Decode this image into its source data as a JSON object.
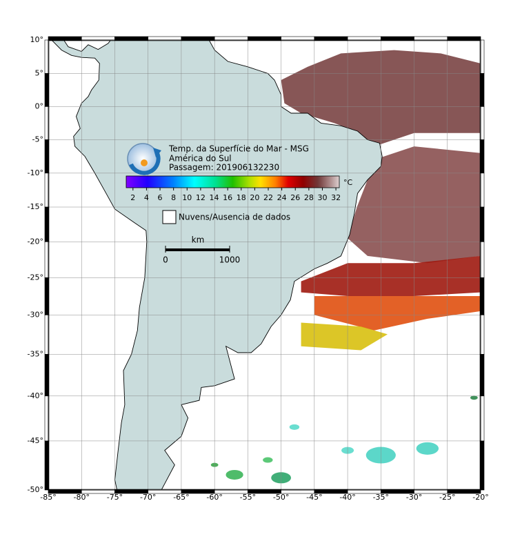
{
  "header": {
    "title": "Temp. da Superfície do Mar - MSG",
    "region": "América do Sul",
    "pass": "Passagem: 201906132230"
  },
  "colorbar": {
    "lim": [
      1,
      32.5
    ],
    "ticks": [
      2,
      4,
      6,
      8,
      10,
      12,
      14,
      16,
      18,
      20,
      22,
      24,
      26,
      28,
      30,
      32
    ],
    "unit": "°C"
  },
  "legend": {
    "no_data": "Nuvens/Ausencia de dados"
  },
  "scale_bar": {
    "unit": "km",
    "ticks": [
      0,
      1000
    ]
  },
  "map": {
    "xlim": [
      -85,
      -20
    ],
    "ylim": [
      -50,
      10
    ],
    "xticks": [
      {
        "value": -85,
        "label": "-85°"
      },
      {
        "value": -80,
        "label": "-80°"
      },
      {
        "value": -75,
        "label": "-75°"
      },
      {
        "value": -70,
        "label": "-70°"
      },
      {
        "value": -65,
        "label": "-65°"
      },
      {
        "value": -60,
        "label": "-60°"
      },
      {
        "value": -55,
        "label": "-55°"
      },
      {
        "value": -50,
        "label": "-50°"
      },
      {
        "value": -45,
        "label": "-45°"
      },
      {
        "value": -40,
        "label": "-40°"
      },
      {
        "value": -35,
        "label": "-35°"
      },
      {
        "value": -30,
        "label": "-30°"
      },
      {
        "value": -25,
        "label": "-25°"
      },
      {
        "value": -20,
        "label": "-20°"
      }
    ],
    "yticks": [
      {
        "value": 10,
        "label": "10°"
      },
      {
        "value": 5,
        "label": "5°"
      },
      {
        "value": 0,
        "label": "0°"
      },
      {
        "value": -5,
        "label": "-5°"
      },
      {
        "value": -10,
        "label": "-10°"
      },
      {
        "value": -15,
        "label": "-15°"
      },
      {
        "value": -20,
        "label": "-20°"
      },
      {
        "value": -25,
        "label": "-25°"
      },
      {
        "value": -30,
        "label": "-30°"
      },
      {
        "value": -35,
        "label": "-35°"
      },
      {
        "value": -40,
        "label": "-40°"
      },
      {
        "value": -45,
        "label": "-45°"
      },
      {
        "value": -50,
        "label": "-50°"
      }
    ]
  }
}
